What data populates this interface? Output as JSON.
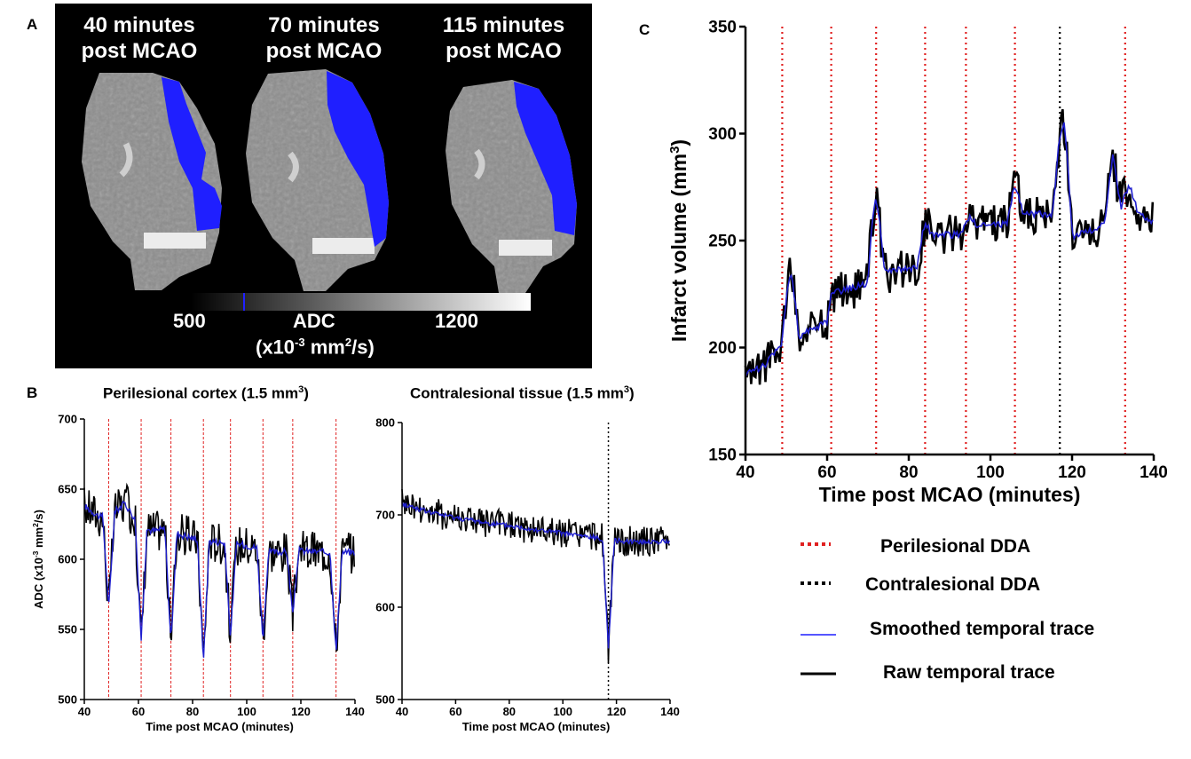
{
  "panel_letters": {
    "a": "A",
    "b": "B",
    "c": "C"
  },
  "panel_a": {
    "titles": [
      {
        "line1": "40 minutes",
        "line2": "post MCAO"
      },
      {
        "line1": "70 minutes",
        "line2": "post MCAO"
      },
      {
        "line1": "115 minutes",
        "line2": "post MCAO"
      }
    ],
    "colorbar": {
      "min_label": "500",
      "max_label": "1200",
      "label": "ADC",
      "unit_base": "(x10",
      "unit_exp": "-3",
      "unit_mid": " mm",
      "unit_exp2": "2",
      "unit_end": "/s)"
    },
    "colors": {
      "lesion": "#1f1fff",
      "background": "#000000"
    }
  },
  "legend": {
    "perilesional": "Perilesional DDA",
    "contralesional": "Contralesional DDA",
    "smoothed": "Smoothed temporal trace",
    "raw": "Raw temporal trace"
  },
  "chart_data": [
    {
      "id": "perilesional",
      "type": "line",
      "title": "Perilesional cortex (1.5 mm",
      "title_exp": "3",
      "title_end": ")",
      "xlabel": "Time post MCAO (minutes)",
      "ylabel": "ADC (x10",
      "ylabel_exp": "-3",
      "ylabel_mid": " mm",
      "ylabel_exp2": "2",
      "ylabel_end": "/s)",
      "xlim": [
        40,
        140
      ],
      "ylim": [
        500,
        700
      ],
      "xticks": [
        40,
        60,
        80,
        100,
        120,
        140
      ],
      "yticks": [
        500,
        550,
        600,
        650,
        700
      ],
      "dda_red": [
        49,
        61,
        72,
        84,
        94,
        106,
        117,
        133
      ],
      "dda_black": [],
      "baseline": [
        [
          40,
          638
        ],
        [
          46,
          630
        ],
        [
          50,
          632
        ],
        [
          55,
          640
        ],
        [
          60,
          625
        ],
        [
          65,
          620
        ],
        [
          70,
          622
        ],
        [
          75,
          618
        ],
        [
          80,
          615
        ],
        [
          90,
          612
        ],
        [
          100,
          610
        ],
        [
          110,
          605
        ],
        [
          120,
          606
        ],
        [
          130,
          605
        ],
        [
          140,
          605
        ]
      ],
      "dips": [
        [
          49,
          565
        ],
        [
          61,
          543
        ],
        [
          72,
          540
        ],
        [
          84,
          528
        ],
        [
          94,
          545
        ],
        [
          106,
          543
        ],
        [
          117,
          560
        ],
        [
          133,
          533
        ]
      ],
      "noise": 14,
      "colors": {
        "raw": "#000000",
        "smooth": "#1f1fcf",
        "dda_red": "#e02020",
        "dda_black": "#000000"
      }
    },
    {
      "id": "contralesional",
      "type": "line",
      "title": "Contralesional tissue (1.5 mm",
      "title_exp": "3",
      "title_end": ")",
      "xlabel": "Time post MCAO (minutes)",
      "xlim": [
        40,
        140
      ],
      "ylim": [
        500,
        800
      ],
      "xticks": [
        40,
        60,
        80,
        100,
        120,
        140
      ],
      "yticks": [
        500,
        600,
        700,
        800
      ],
      "dda_red": [],
      "dda_black": [
        117
      ],
      "baseline": [
        [
          40,
          712
        ],
        [
          50,
          703
        ],
        [
          60,
          697
        ],
        [
          70,
          692
        ],
        [
          80,
          688
        ],
        [
          90,
          684
        ],
        [
          100,
          680
        ],
        [
          110,
          676
        ],
        [
          116,
          674
        ],
        [
          120,
          672
        ],
        [
          130,
          671
        ],
        [
          140,
          671
        ]
      ],
      "dips": [
        [
          117,
          555
        ]
      ],
      "noise": 15,
      "colors": {
        "raw": "#000000",
        "smooth": "#1f1fcf",
        "dda_red": "#e02020",
        "dda_black": "#000000"
      }
    },
    {
      "id": "infarct",
      "type": "line",
      "xlabel": "Time post MCAO (minutes)",
      "ylabel": "Infarct volume (mm",
      "ylabel_exp": "3",
      "ylabel_end": ")",
      "xlim": [
        40,
        140
      ],
      "ylim": [
        150,
        350
      ],
      "xticks": [
        40,
        60,
        80,
        100,
        120,
        140
      ],
      "yticks": [
        150,
        200,
        250,
        300,
        350
      ],
      "dda_red": [
        49,
        61,
        72,
        84,
        94,
        106,
        133
      ],
      "dda_black": [
        117
      ],
      "baseline": [
        [
          40,
          187
        ],
        [
          45,
          192
        ],
        [
          49,
          203
        ],
        [
          50,
          210
        ],
        [
          52,
          213
        ],
        [
          53,
          205
        ],
        [
          60,
          212
        ],
        [
          61,
          225
        ],
        [
          70,
          230
        ],
        [
          71,
          245
        ],
        [
          72,
          250
        ],
        [
          74,
          235
        ],
        [
          83,
          238
        ],
        [
          84,
          252
        ],
        [
          93,
          253
        ],
        [
          94,
          256
        ],
        [
          105,
          258
        ],
        [
          106,
          263
        ],
        [
          116,
          262
        ],
        [
          117,
          268
        ],
        [
          119,
          262
        ],
        [
          120,
          252
        ],
        [
          129,
          258
        ],
        [
          133,
          268
        ],
        [
          140,
          258
        ]
      ],
      "dips": [],
      "peaks": [
        [
          51,
          236
        ],
        [
          72,
          270
        ],
        [
          84,
          258
        ],
        [
          95,
          262
        ],
        [
          106,
          276
        ],
        [
          117,
          292
        ],
        [
          118,
          306
        ],
        [
          130,
          291
        ],
        [
          134,
          276
        ]
      ],
      "noise": 9,
      "colors": {
        "raw": "#000000",
        "smooth": "#1f1fcf",
        "dda_red": "#e02020",
        "dda_black": "#000000"
      }
    }
  ]
}
